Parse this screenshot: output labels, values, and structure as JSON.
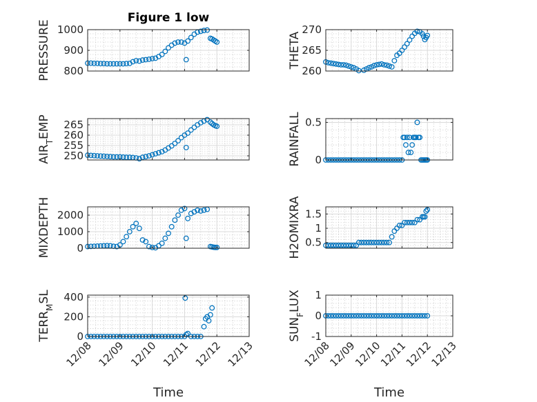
{
  "figure": {
    "title": "Figure 1 low",
    "marker_color": "#0072BD",
    "x_label": "Time"
  },
  "chart_data": [
    {
      "type": "scatter",
      "title": "Figure 1 low",
      "ylabel": "PRESSURE",
      "ylim": [
        800,
        1000
      ],
      "yticks": [
        800,
        900,
        1000
      ],
      "yticklabels": [
        "800",
        "900",
        "1000"
      ],
      "xlim": [
        0,
        5
      ],
      "xticks": [
        0,
        1,
        2,
        3,
        4,
        5
      ],
      "xticklabels": [
        "12/08",
        "12/09",
        "12/10",
        "12/11",
        "12/12",
        "12/13"
      ],
      "show_xticklabels": false,
      "grid": true,
      "series": [
        {
          "x": [
            0,
            0.1,
            0.2,
            0.3,
            0.4,
            0.5,
            0.6,
            0.7,
            0.8,
            0.9,
            1.0,
            1.1,
            1.2,
            1.3,
            1.4,
            1.5,
            1.6,
            1.7,
            1.8,
            1.9,
            2.0,
            2.1,
            2.2,
            2.3,
            2.4,
            2.5,
            2.6,
            2.7,
            2.8,
            2.9,
            3.0,
            3.05,
            3.1,
            3.2,
            3.3,
            3.4,
            3.5,
            3.6,
            3.7,
            3.8,
            3.85,
            3.9,
            3.95,
            4.0
          ],
          "y": [
            838,
            838,
            837,
            837,
            836,
            836,
            835,
            835,
            835,
            835,
            835,
            835,
            836,
            837,
            845,
            850,
            848,
            853,
            855,
            857,
            860,
            862,
            870,
            880,
            895,
            912,
            925,
            935,
            940,
            940,
            935,
            855,
            945,
            962,
            978,
            988,
            992,
            996,
            998,
            958,
            955,
            950,
            945,
            940
          ]
        }
      ]
    },
    {
      "type": "scatter",
      "ylabel": "THETA",
      "ylim": [
        260,
        270
      ],
      "yticks": [
        260,
        265,
        270
      ],
      "yticklabels": [
        "260",
        "265",
        "270"
      ],
      "xlim": [
        0,
        5
      ],
      "xticks": [
        0,
        1,
        2,
        3,
        4,
        5
      ],
      "xticklabels": [
        "12/08",
        "12/09",
        "12/10",
        "12/11",
        "12/12",
        "12/13"
      ],
      "show_xticklabels": false,
      "grid": true,
      "series": [
        {
          "x": [
            0,
            0.1,
            0.2,
            0.3,
            0.4,
            0.5,
            0.6,
            0.7,
            0.8,
            0.9,
            1.0,
            1.1,
            1.2,
            1.3,
            1.4,
            1.5,
            1.6,
            1.7,
            1.8,
            1.9,
            2.0,
            2.1,
            2.2,
            2.3,
            2.4,
            2.5,
            2.6,
            2.7,
            2.8,
            2.9,
            3.0,
            3.1,
            3.2,
            3.3,
            3.4,
            3.5,
            3.6,
            3.7,
            3.8,
            3.85,
            3.9,
            3.95,
            4.0
          ],
          "y": [
            262.2,
            262.0,
            261.9,
            261.8,
            261.7,
            261.6,
            261.5,
            261.5,
            261.4,
            261.2,
            261.0,
            260.8,
            260.5,
            260.1,
            259.9,
            260.2,
            260.5,
            260.8,
            261.0,
            261.3,
            261.5,
            261.6,
            261.7,
            261.5,
            261.4,
            261.2,
            261.0,
            262.5,
            263.8,
            264.3,
            265.0,
            265.8,
            266.6,
            267.5,
            268.4,
            269.1,
            269.6,
            269.5,
            269.0,
            268.4,
            267.6,
            268.1,
            268.6
          ]
        }
      ]
    },
    {
      "type": "scatter",
      "ylabel": "AIR_TEMP",
      "ylim": [
        248,
        268
      ],
      "yticks": [
        250,
        255,
        260,
        265
      ],
      "yticklabels": [
        "250",
        "255",
        "260",
        "265"
      ],
      "xlim": [
        0,
        5
      ],
      "xticks": [
        0,
        1,
        2,
        3,
        4,
        5
      ],
      "xticklabels": [
        "12/08",
        "12/09",
        "12/10",
        "12/11",
        "12/12",
        "12/13"
      ],
      "show_xticklabels": false,
      "grid": true,
      "series": [
        {
          "x": [
            0,
            0.1,
            0.2,
            0.3,
            0.4,
            0.5,
            0.6,
            0.7,
            0.8,
            0.9,
            1.0,
            1.1,
            1.2,
            1.3,
            1.4,
            1.5,
            1.6,
            1.7,
            1.8,
            1.9,
            2.0,
            2.1,
            2.2,
            2.3,
            2.4,
            2.5,
            2.6,
            2.7,
            2.8,
            2.9,
            3.0,
            3.05,
            3.1,
            3.2,
            3.3,
            3.4,
            3.5,
            3.6,
            3.7,
            3.8,
            3.85,
            3.9,
            3.95,
            4.0
          ],
          "y": [
            250.3,
            250.2,
            250.1,
            250.0,
            249.9,
            249.8,
            249.7,
            249.6,
            249.5,
            249.5,
            249.5,
            249.4,
            249.3,
            249.3,
            249.2,
            249.0,
            248.6,
            249.3,
            249.6,
            250.0,
            250.5,
            251.0,
            251.5,
            252.0,
            252.8,
            253.8,
            254.8,
            256.0,
            257.3,
            258.8,
            260.0,
            254.0,
            261.0,
            262.5,
            263.8,
            265.0,
            266.0,
            266.8,
            267.5,
            266.3,
            265.6,
            265.0,
            264.6,
            264.3
          ]
        }
      ]
    },
    {
      "type": "scatter",
      "ylabel": "RAINFALL",
      "ylim": [
        0,
        0.55
      ],
      "yticks": [
        0,
        0.5
      ],
      "yticklabels": [
        "0",
        "0.5"
      ],
      "xlim": [
        0,
        5
      ],
      "xticks": [
        0,
        1,
        2,
        3,
        4,
        5
      ],
      "xticklabels": [
        "12/08",
        "12/09",
        "12/10",
        "12/11",
        "12/12",
        "12/13"
      ],
      "show_xticklabels": false,
      "grid": true,
      "series": [
        {
          "x": [
            0,
            0.1,
            0.2,
            0.3,
            0.4,
            0.5,
            0.6,
            0.7,
            0.8,
            0.9,
            1.0,
            1.1,
            1.2,
            1.3,
            1.4,
            1.5,
            1.6,
            1.7,
            1.8,
            1.9,
            2.0,
            2.1,
            2.2,
            2.3,
            2.4,
            2.5,
            2.6,
            2.7,
            2.8,
            2.9,
            3.0,
            3.05,
            3.1,
            3.15,
            3.2,
            3.25,
            3.3,
            3.35,
            3.4,
            3.45,
            3.5,
            3.55,
            3.6,
            3.65,
            3.7,
            3.75,
            3.8,
            3.85,
            3.9,
            3.95,
            4.0
          ],
          "y": [
            0,
            0,
            0,
            0,
            0,
            0,
            0,
            0,
            0,
            0,
            0,
            0,
            0,
            0,
            0,
            0,
            0,
            0,
            0,
            0,
            0,
            0,
            0,
            0,
            0,
            0,
            0,
            0,
            0,
            0,
            0,
            0.3,
            0.3,
            0.2,
            0.3,
            0.1,
            0.3,
            0.1,
            0.2,
            0.3,
            0.3,
            0.3,
            0.5,
            0.3,
            0.3,
            0,
            0,
            0,
            0,
            0,
            0
          ]
        }
      ]
    },
    {
      "type": "scatter",
      "ylabel": "MIXDEPTH",
      "ylim": [
        0,
        2500
      ],
      "yticks": [
        0,
        1000,
        2000
      ],
      "yticklabels": [
        "0",
        "1000",
        "2000"
      ],
      "xlim": [
        0,
        5
      ],
      "xticks": [
        0,
        1,
        2,
        3,
        4,
        5
      ],
      "xticklabels": [
        "12/08",
        "12/09",
        "12/10",
        "12/11",
        "12/12",
        "12/13"
      ],
      "show_xticklabels": false,
      "grid": true,
      "series": [
        {
          "x": [
            0,
            0.1,
            0.2,
            0.3,
            0.4,
            0.5,
            0.6,
            0.7,
            0.8,
            0.9,
            1.0,
            1.1,
            1.2,
            1.3,
            1.4,
            1.5,
            1.6,
            1.7,
            1.8,
            1.9,
            2.0,
            2.1,
            2.2,
            2.3,
            2.4,
            2.5,
            2.6,
            2.7,
            2.8,
            2.9,
            3.0,
            3.05,
            3.1,
            3.2,
            3.3,
            3.4,
            3.5,
            3.6,
            3.7,
            3.8,
            3.85,
            3.9,
            3.95,
            4.0
          ],
          "y": [
            100,
            110,
            120,
            130,
            140,
            150,
            160,
            150,
            120,
            100,
            200,
            400,
            700,
            1000,
            1300,
            1500,
            1200,
            500,
            400,
            100,
            50,
            30,
            150,
            300,
            600,
            900,
            1300,
            1700,
            2000,
            2300,
            2400,
            600,
            1800,
            2100,
            2200,
            2300,
            2250,
            2300,
            2350,
            100,
            80,
            60,
            50,
            50
          ]
        }
      ]
    },
    {
      "type": "scatter",
      "ylabel": "H2OMIXRA",
      "ylim": [
        0.3,
        1.75
      ],
      "yticks": [
        0.5,
        1,
        1.5
      ],
      "yticklabels": [
        "0.5",
        "1",
        "1.5"
      ],
      "xlim": [
        0,
        5
      ],
      "xticks": [
        0,
        1,
        2,
        3,
        4,
        5
      ],
      "xticklabels": [
        "12/08",
        "12/09",
        "12/10",
        "12/11",
        "12/12",
        "12/13"
      ],
      "show_xticklabels": false,
      "grid": true,
      "series": [
        {
          "x": [
            0,
            0.1,
            0.2,
            0.3,
            0.4,
            0.5,
            0.6,
            0.7,
            0.8,
            0.9,
            1.0,
            1.1,
            1.2,
            1.3,
            1.4,
            1.5,
            1.6,
            1.7,
            1.8,
            1.9,
            2.0,
            2.1,
            2.2,
            2.3,
            2.4,
            2.5,
            2.6,
            2.7,
            2.8,
            2.9,
            3.0,
            3.1,
            3.2,
            3.3,
            3.4,
            3.5,
            3.6,
            3.7,
            3.8,
            3.85,
            3.9,
            3.95,
            4.0
          ],
          "y": [
            0.4,
            0.4,
            0.4,
            0.4,
            0.4,
            0.4,
            0.4,
            0.4,
            0.4,
            0.4,
            0.4,
            0.4,
            0.4,
            0.5,
            0.5,
            0.5,
            0.5,
            0.5,
            0.5,
            0.5,
            0.5,
            0.5,
            0.5,
            0.5,
            0.5,
            0.5,
            0.7,
            0.9,
            1.0,
            1.1,
            1.1,
            1.2,
            1.2,
            1.2,
            1.2,
            1.2,
            1.3,
            1.3,
            1.4,
            1.4,
            1.4,
            1.6,
            1.65
          ]
        }
      ]
    },
    {
      "type": "scatter",
      "ylabel": "TERR_MSL",
      "ylim": [
        0,
        420
      ],
      "yticks": [
        0,
        200,
        400
      ],
      "yticklabels": [
        "0",
        "200",
        "400"
      ],
      "xlim": [
        0,
        5
      ],
      "xticks": [
        0,
        1,
        2,
        3,
        4,
        5
      ],
      "xticklabels": [
        "12/08",
        "12/09",
        "12/10",
        "12/11",
        "12/12",
        "12/13"
      ],
      "show_xticklabels": true,
      "grid": true,
      "series": [
        {
          "x": [
            0,
            0.1,
            0.2,
            0.3,
            0.4,
            0.5,
            0.6,
            0.7,
            0.8,
            0.9,
            1.0,
            1.1,
            1.2,
            1.3,
            1.4,
            1.5,
            1.6,
            1.7,
            1.8,
            1.9,
            2.0,
            2.1,
            2.2,
            2.3,
            2.4,
            2.5,
            2.6,
            2.7,
            2.8,
            2.9,
            3.0,
            3.02,
            3.05,
            3.1,
            3.2,
            3.3,
            3.4,
            3.5,
            3.6,
            3.65,
            3.7,
            3.75,
            3.8,
            3.85
          ],
          "y": [
            0,
            0,
            0,
            0,
            0,
            0,
            0,
            0,
            0,
            0,
            0,
            0,
            0,
            0,
            0,
            0,
            0,
            0,
            0,
            0,
            0,
            0,
            0,
            0,
            0,
            0,
            0,
            0,
            0,
            0,
            0,
            390,
            20,
            30,
            0,
            0,
            0,
            0,
            100,
            180,
            200,
            160,
            220,
            290
          ]
        }
      ]
    },
    {
      "type": "scatter",
      "ylabel": "SUN_FLUX",
      "ylim": [
        -1,
        1
      ],
      "yticks": [
        -1,
        0,
        1
      ],
      "yticklabels": [
        "-1",
        "0",
        "1"
      ],
      "xlim": [
        0,
        5
      ],
      "xticks": [
        0,
        1,
        2,
        3,
        4,
        5
      ],
      "xticklabels": [
        "12/08",
        "12/09",
        "12/10",
        "12/11",
        "12/12",
        "12/13"
      ],
      "show_xticklabels": true,
      "grid": true,
      "series": [
        {
          "x": [
            0,
            0.1,
            0.2,
            0.3,
            0.4,
            0.5,
            0.6,
            0.7,
            0.8,
            0.9,
            1.0,
            1.1,
            1.2,
            1.3,
            1.4,
            1.5,
            1.6,
            1.7,
            1.8,
            1.9,
            2.0,
            2.1,
            2.2,
            2.3,
            2.4,
            2.5,
            2.6,
            2.7,
            2.8,
            2.9,
            3.0,
            3.1,
            3.2,
            3.3,
            3.4,
            3.5,
            3.6,
            3.7,
            3.8,
            3.9,
            4.0
          ],
          "y": [
            0,
            0,
            0,
            0,
            0,
            0,
            0,
            0,
            0,
            0,
            0,
            0,
            0,
            0,
            0,
            0,
            0,
            0,
            0,
            0,
            0,
            0,
            0,
            0,
            0,
            0,
            0,
            0,
            0,
            0,
            0,
            0,
            0,
            0,
            0,
            0,
            0,
            0,
            0,
            0,
            0
          ]
        }
      ]
    }
  ]
}
